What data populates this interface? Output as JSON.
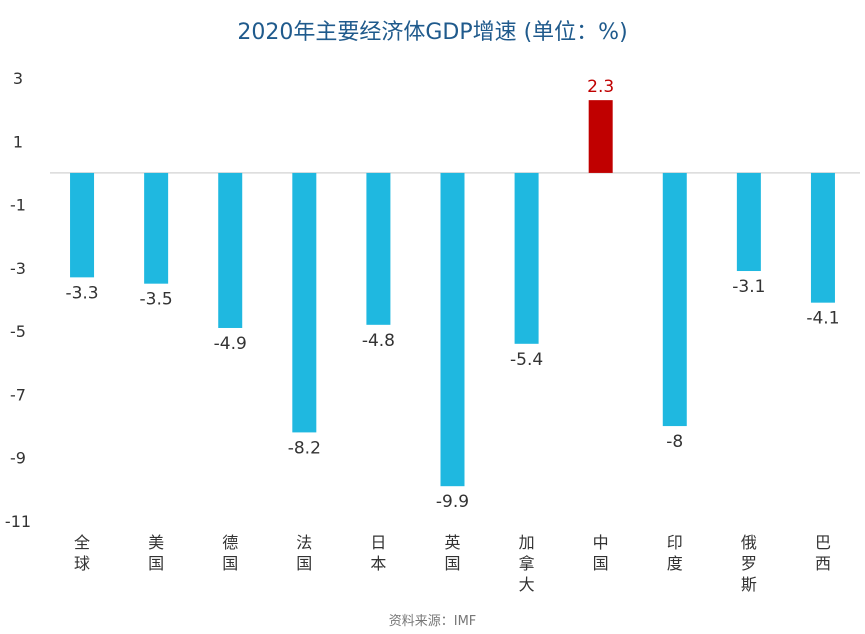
{
  "chart_data": {
    "type": "bar",
    "title": "2020年主要经济体GDP增速 (单位：%)",
    "source": "资料来源：IMF",
    "categories": [
      "全球",
      "美国",
      "德国",
      "法国",
      "日本",
      "英国",
      "加拿大",
      "中国",
      "印度",
      "俄罗斯",
      "巴西"
    ],
    "values": [
      -3.3,
      -3.5,
      -4.9,
      -8.2,
      -4.8,
      -9.9,
      -5.4,
      2.3,
      -8,
      -3.1,
      -4.1
    ],
    "value_labels": [
      "-3.3",
      "-3.5",
      "-4.9",
      "-8.2",
      "-4.8",
      "-9.9",
      "-5.4",
      "2.3",
      "-8",
      "-3.1",
      "-4.1"
    ],
    "yticks": [
      "3",
      "1",
      "-1",
      "-3",
      "-5",
      "-7",
      "-9",
      "-11"
    ],
    "ylim": [
      -11,
      3
    ],
    "xlabel": "",
    "ylabel": "",
    "grid": false,
    "colors": {
      "bar": "#1fb8e0",
      "highlight_bar": "#c00000",
      "highlight_label": "#c00000",
      "zero_line": "#d9d9d9",
      "label": "#333333"
    },
    "highlight_category": "中国"
  }
}
